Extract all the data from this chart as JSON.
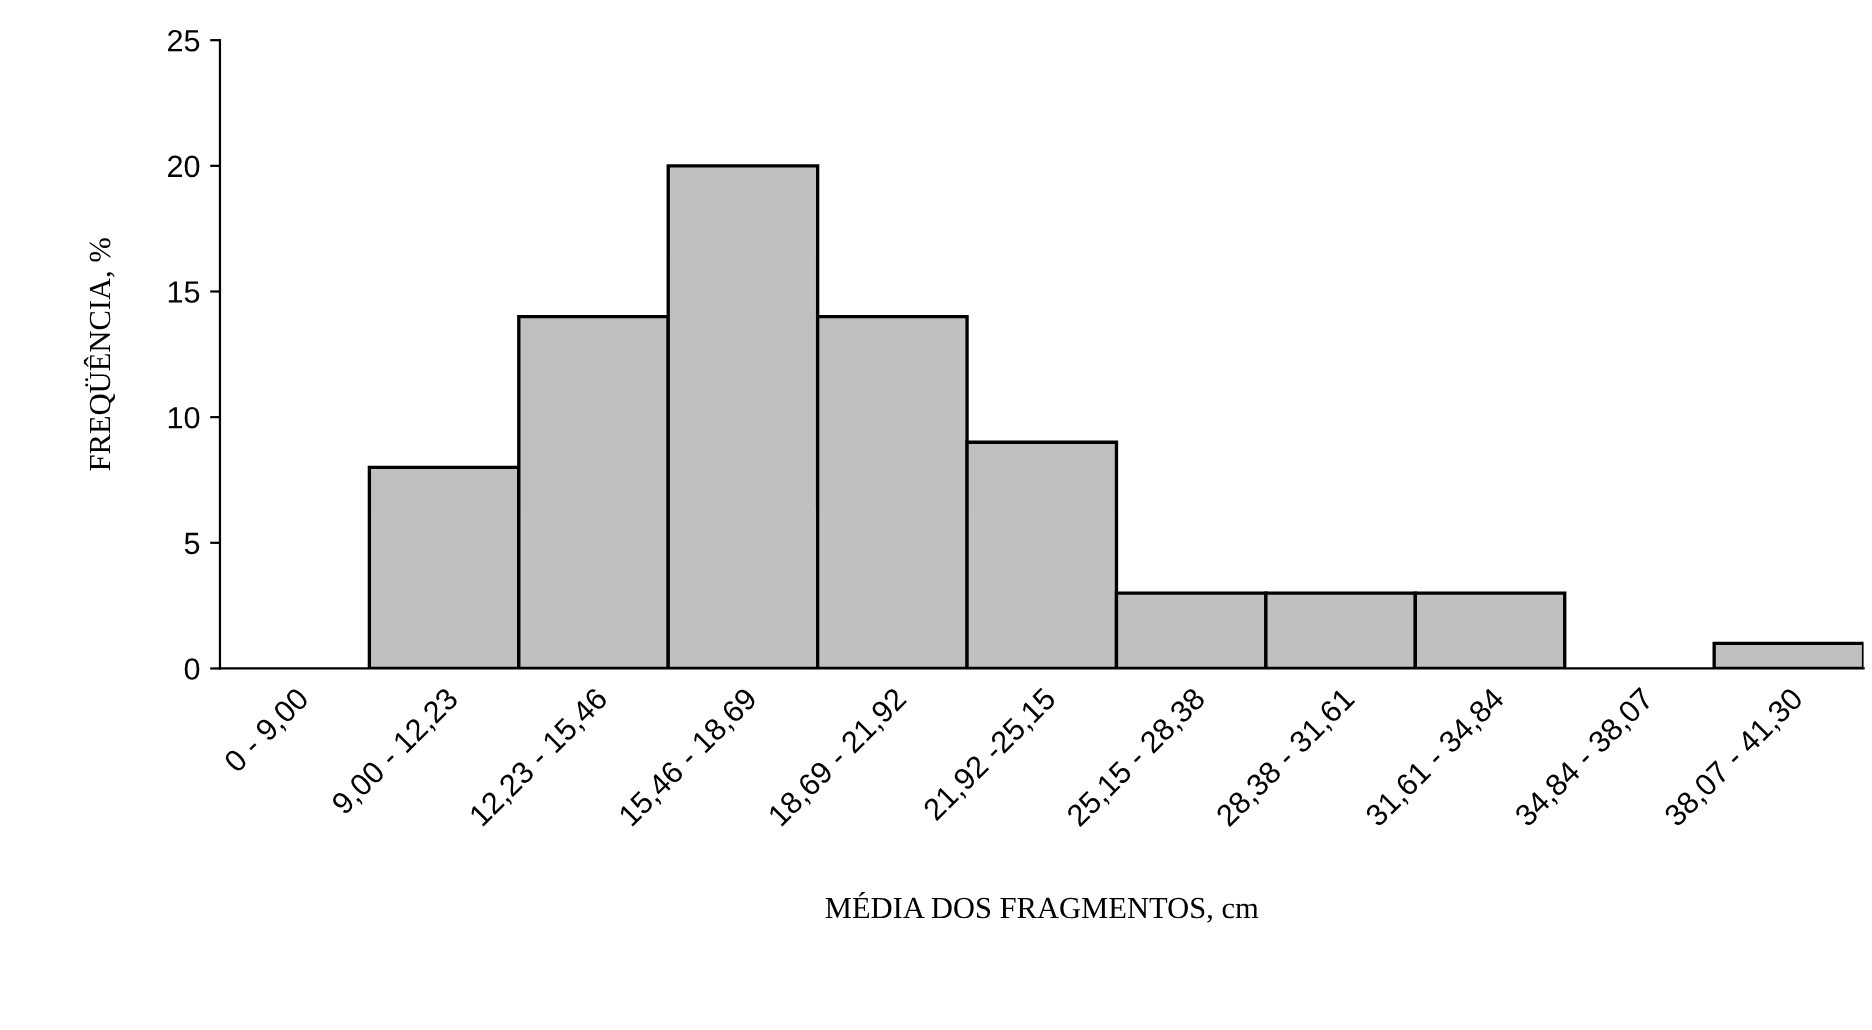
{
  "chart_data": {
    "type": "bar",
    "xlabel": "MÉDIA DOS FRAGMENTOS, cm",
    "ylabel": "FREQÜÊNCIA, %",
    "categories": [
      "0 - 9,00",
      "9,00 - 12,23",
      "12,23 - 15,46",
      "15,46 - 18,69",
      "18,69 - 21,92",
      "21,92 -25,15",
      "25,15 - 28,38",
      "28,38 - 31,61",
      "31,61 - 34,84",
      "34,84 - 38,07",
      "38,07 - 41,30"
    ],
    "values": [
      0,
      8,
      14,
      20,
      14,
      9,
      3,
      3,
      3,
      0,
      1
    ],
    "color": "#c0c0c0",
    "ylim": [
      0,
      25
    ],
    "yticks": [
      0,
      5,
      10,
      15,
      20,
      25
    ],
    "grid": false,
    "legend": false
  }
}
